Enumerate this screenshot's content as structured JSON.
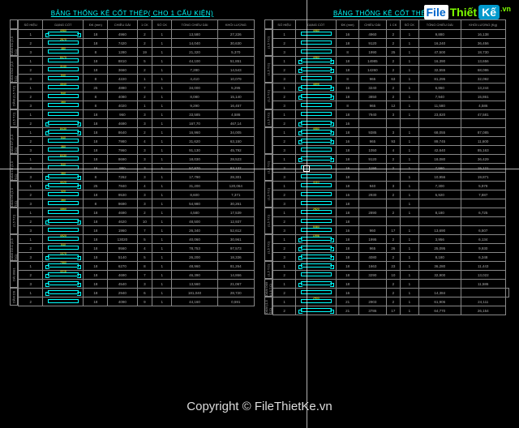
{
  "watermark": {
    "file": "File",
    "thiet": "Thiết",
    "ke": "Kế",
    "vn": ".vn"
  },
  "copyright": "Copyright © FileThietKe.vn",
  "colors": {
    "background": "#000000",
    "grid_border": "#888888",
    "text": "#aaaaaa",
    "title": "#00ffff",
    "shape": "#00ffff",
    "dimension": "#ffff00",
    "crosshair": "#ffffff"
  },
  "left_table": {
    "title": "BẢNG THỐNG KÊ CỐT THÉP( CHO 1 CẤU KIỆN)",
    "columns": [
      "CẤU KIỆN",
      "SỐ HIỆU",
      "DẠNG CỐT",
      "ĐK (mm)",
      "CHIỀU DÀI",
      "1 CK",
      "SỐ CK",
      "TỔNG CHIỀU DÀI",
      "KHỐI LƯỢNG"
    ],
    "groups": [
      {
        "label": "DẦM D1 (2,5 T.C)",
        "rows": [
          [
            "1",
            "4960",
            "18",
            "4960",
            "2",
            "1",
            "13,580",
            "27,226"
          ],
          [
            "2",
            "2670",
            "18",
            "7420",
            "2",
            "1",
            "14,040",
            "30,630"
          ],
          [
            "3",
            "380",
            "8",
            "1280",
            "19",
            "1",
            "21,320",
            "5,370"
          ]
        ]
      },
      {
        "label": "DẦM D12 (2,5 T.C)",
        "rows": [
          [
            "1",
            "8470",
            "18",
            "8810",
            "5",
            "1",
            "44,100",
            "51,851"
          ],
          [
            "2",
            "3140",
            "18",
            "3660",
            "2",
            "1",
            "7,280",
            "14,543"
          ],
          [
            "3",
            "540",
            "8",
            "4220",
            "1",
            "1",
            "4,410",
            "10,079"
          ]
        ]
      },
      {
        "label": "DẦM (1,5 T.C)",
        "rows": [
          [
            "1",
            "4540",
            "25",
            "4880",
            "7",
            "1",
            "34,000",
            "5,295"
          ],
          [
            "2",
            "540",
            "8",
            "4080",
            "2",
            "1",
            "8,080",
            "15,140"
          ],
          [
            "3",
            "360",
            "8",
            "4020",
            "1",
            "1",
            "9,290",
            "16,457"
          ]
        ]
      },
      {
        "label": "(1,5 T.C)",
        "rows": [
          [
            "1",
            "",
            "18",
            "960",
            "3",
            "1",
            "33,585",
            "4,586"
          ],
          [
            "2",
            "",
            "18",
            "4690",
            "3",
            "1",
            "167,70",
            "467,14"
          ]
        ]
      },
      {
        "label": "DẦM D7 (1,5 T.C)",
        "rows": [
          [
            "1",
            "8430",
            "18",
            "8640",
            "2",
            "1",
            "16,960",
            "34,005"
          ],
          [
            "2",
            "540",
            "18",
            "7980",
            "4",
            "1",
            "31,620",
            "63,150"
          ],
          [
            "3",
            "360",
            "18",
            "7960",
            "3",
            "1",
            "91,130",
            "45,792"
          ]
        ]
      },
      {
        "label": "DẦM D8 (1,5 T.C)",
        "rows": [
          [
            "1",
            "8430",
            "18",
            "8690",
            "3",
            "1",
            "18,030",
            "28,523"
          ],
          [
            "2",
            "540",
            "16",
            "950",
            "3",
            "1",
            "57,870",
            "63,137"
          ],
          [
            "3",
            "360",
            "8",
            "7262",
            "3",
            "1",
            "17,790",
            "28,301"
          ]
        ]
      },
      {
        "label": "DẦM D9 (1,5 T.C)",
        "rows": [
          [
            "1",
            "4020",
            "25",
            "7840",
            "4",
            "1",
            "31,200",
            "120,064"
          ],
          [
            "2",
            "320",
            "18",
            "9530",
            "3",
            "1",
            "8,600",
            "7,371"
          ],
          [
            "3",
            "360",
            "8",
            "9690",
            "3",
            "1",
            "54,980",
            "30,261"
          ]
        ]
      },
      {
        "label": "(1,5 T.C)",
        "rows": [
          [
            "1",
            "4860",
            "18",
            "4690",
            "2",
            "1",
            "4,580",
            "17,539"
          ],
          [
            "2",
            "",
            "18",
            "4620",
            "10",
            "1",
            "48,500",
            "12,937"
          ],
          [
            "3",
            "",
            "18",
            "1960",
            "7",
            "1",
            "26,340",
            "52,612"
          ]
        ]
      },
      {
        "label": "DẦM D2-1 (2,5 T.C)",
        "rows": [
          [
            "1",
            "4920",
            "18",
            "13020",
            "5",
            "1",
            "40,060",
            "30,961"
          ],
          [
            "2",
            "540",
            "18",
            "9560",
            "4",
            "1",
            "78,753",
            "97,573"
          ],
          [
            "3",
            "1070",
            "18",
            "5140",
            "5",
            "1",
            "26,200",
            "18,336"
          ]
        ]
      },
      {
        "label": "DÀI 8981",
        "rows": [
          [
            "1",
            "7560",
            "18",
            "6270",
            "8",
            "1",
            "48,960",
            "81,264"
          ],
          [
            "2",
            "4018",
            "18",
            "4690",
            "7",
            "1",
            "46,390",
            "14,866"
          ],
          [
            "3",
            "",
            "18",
            "4540",
            "3",
            "1",
            "13,560",
            "21,067"
          ]
        ]
      },
      {
        "label": "DẦM D9",
        "rows": [
          [
            "1",
            "",
            "18",
            "2940",
            "6",
            "1",
            "181,040",
            "28,720"
          ],
          [
            "2",
            "",
            "18",
            "4090",
            "9",
            "1",
            "44,160",
            "0,591"
          ]
        ]
      }
    ]
  },
  "right_table": {
    "title": "BẢNG THỐNG KÊ CỐT THÉP( C",
    "columns": [
      "CẤU KIỆN",
      "SỐ HIỆU",
      "DẠNG CỐT",
      "ĐK (mm)",
      "CHIỀU DÀI",
      "1 CK",
      "SỐ CK",
      "TỔNG CHIỀU DÀI",
      "KHỐI LƯỢNG (Kg)"
    ],
    "groups": [
      {
        "label": "(1,5 T.C)",
        "rows": [
          [
            "1",
            "4960",
            "16",
            "4960",
            "2",
            "1",
            "9,880",
            "16,138"
          ],
          [
            "2",
            "",
            "18",
            "9120",
            "2",
            "1",
            "16,240",
            "36,456"
          ],
          [
            "3",
            "",
            "8",
            "1990",
            "25",
            "1",
            "47,500",
            "18,730"
          ]
        ]
      },
      {
        "label": "(1,5 T.C)",
        "rows": [
          [
            "1",
            "4960",
            "18",
            "14985",
            "2",
            "1",
            "16,390",
            "13,656"
          ],
          [
            "2",
            "",
            "18",
            "14260",
            "2",
            "1",
            "32,555",
            "68,086"
          ],
          [
            "3",
            "",
            "8",
            "965",
            "63",
            "1",
            "81,295",
            "32,092"
          ]
        ]
      },
      {
        "label": "(1,5 T.C)",
        "rows": [
          [
            "1",
            "4895",
            "16",
            "3240",
            "2",
            "1",
            "6,860",
            "13,244"
          ],
          [
            "2",
            "",
            "18",
            "3850",
            "2",
            "1",
            "7,940",
            "15,861"
          ],
          [
            "3",
            "",
            "8",
            "965",
            "12",
            "1",
            "11,580",
            "4,586"
          ]
        ]
      },
      {
        "label": "(1,5 T.C)",
        "rows": [
          [
            "1",
            "",
            "18",
            "7940",
            "3",
            "1",
            "23,820",
            "47,581"
          ],
          [
            "2",
            "",
            "16",
            "",
            "",
            "",
            "",
            ""
          ]
        ]
      },
      {
        "label": "",
        "rows": [
          [
            "1",
            "4550",
            "18",
            "9385",
            "3",
            "1",
            "68,055",
            "87,085"
          ],
          [
            "2",
            "",
            "16",
            "965",
            "93",
            "1",
            "89,745",
            "11,600"
          ],
          [
            "3",
            "",
            "18",
            "1050",
            "4",
            "1",
            "42,640",
            "85,163"
          ]
        ]
      },
      {
        "label": "(1,5 T.C)",
        "rows": [
          [
            "1",
            "",
            "18",
            "9120",
            "2",
            "1",
            "18,080",
            "36,429"
          ],
          [
            "2",
            "",
            "16",
            "1190",
            "2",
            "1",
            "7,560",
            "15,121"
          ],
          [
            "3",
            "",
            "18",
            "",
            "",
            "1",
            "10,956",
            "19,871"
          ]
        ]
      },
      {
        "label": "(1,5 T.C)",
        "rows": [
          [
            "1",
            "4110",
            "18",
            "940",
            "3",
            "1",
            "7,300",
            "5,978"
          ],
          [
            "2",
            "",
            "16",
            "2930",
            "2",
            "1",
            "5,920",
            "7,887"
          ],
          [
            "3",
            "",
            "18",
            "",
            "",
            "1",
            "",
            ""
          ]
        ]
      },
      {
        "label": "(1,5 T.C)",
        "rows": [
          [
            "1",
            "2820",
            "18",
            "2890",
            "2",
            "1",
            "8,180",
            "6,725"
          ],
          [
            "2",
            "",
            "18",
            "",
            "",
            "",
            "",
            ""
          ],
          [
            "3",
            "5460",
            "16",
            "960",
            "17",
            "1",
            "13,690",
            "6,507"
          ]
        ]
      },
      {
        "label": "(1,5 T.C)",
        "rows": [
          [
            "1",
            "1996",
            "18",
            "1995",
            "2",
            "1",
            "3,956",
            "6,134"
          ],
          [
            "2",
            "",
            "18",
            "965",
            "26",
            "1",
            "25,095",
            "9,930"
          ],
          [
            "3",
            "",
            "18",
            "4080",
            "2",
            "1",
            "8,180",
            "6,348"
          ]
        ]
      },
      {
        "label": "(1,5 T.C)",
        "rows": [
          [
            "1",
            "",
            "18",
            "1663",
            "23",
            "1",
            "36,280",
            "11,443"
          ],
          [
            "2",
            "",
            "18",
            "3290",
            "10",
            "1",
            "32,900",
            "13,022"
          ]
        ]
      },
      {
        "label": "DẦM D09 (1,5 T.C)",
        "rows": [
          [
            "1",
            "",
            "18",
            "",
            "2",
            "1",
            "",
            "11,586"
          ],
          [
            "2",
            "",
            "16",
            "",
            "2",
            "1",
            "14,384",
            "",
            ""
          ]
        ]
      },
      {
        "label": "DẦM (1,5 T.C)",
        "rows": [
          [
            "1",
            "2903",
            "21",
            "2903",
            "2",
            "1",
            "61,906",
            "24,111"
          ],
          [
            "2",
            "",
            "21",
            "3786",
            "17",
            "1",
            "64,770",
            "26,154"
          ]
        ]
      }
    ]
  }
}
